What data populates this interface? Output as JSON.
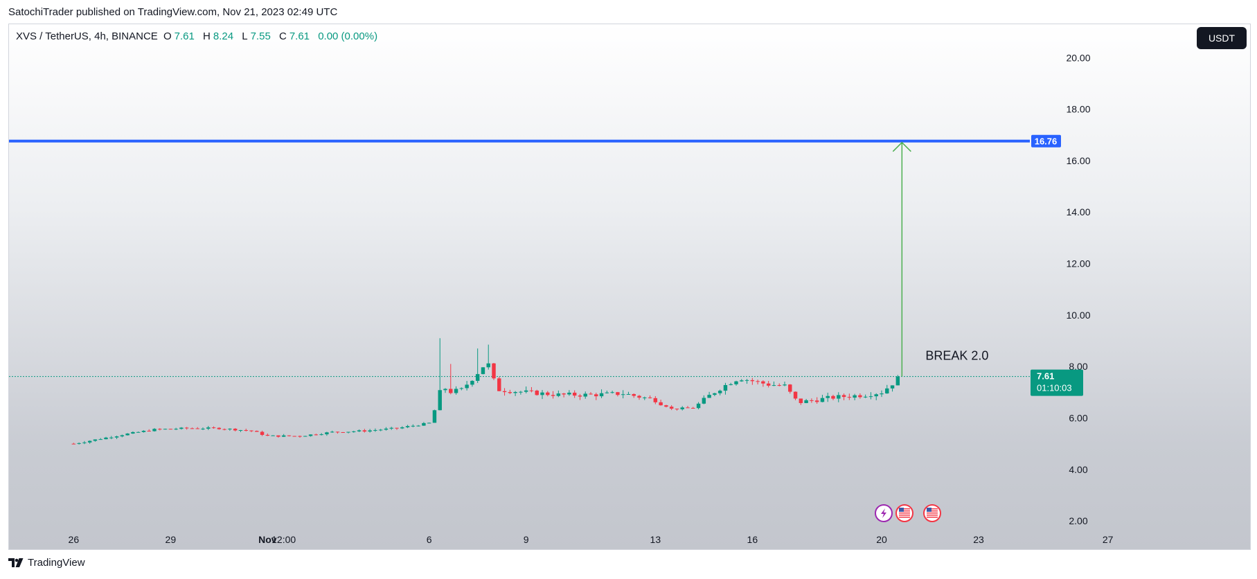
{
  "caption": "SatochiTrader published on TradingView.com, Nov 21, 2023 02:49 UTC",
  "legend": {
    "symbol": "XVS / TetherUS, 4h, BINANCE",
    "open_label": "O",
    "open": "7.61",
    "high_label": "H",
    "high": "8.24",
    "low_label": "L",
    "low": "7.55",
    "close_label": "C",
    "close": "7.61",
    "change": "0.00 (0.00%)"
  },
  "currency_button": "USDT",
  "brand": "TradingView",
  "icons": [
    "lightning-event-icon",
    "us-flag-event-icon",
    "us-flag-event-icon"
  ],
  "colors": {
    "up": "#089981",
    "down": "#f23645",
    "resistance_line": "#2962ff",
    "arrow": "#4caf50",
    "price_badge": "#089981"
  },
  "chart_data": {
    "type": "candlestick",
    "symbol": "XVS / TetherUS",
    "interval": "4h",
    "exchange": "BINANCE",
    "ylim": [
      0.9,
      21.3
    ],
    "y_ticks": [
      "2.00",
      "4.00",
      "6.00",
      "8.00",
      "10.00",
      "12.00",
      "14.00",
      "16.00",
      "18.00",
      "20.00"
    ],
    "x_ticks": [
      {
        "label": "26",
        "day": 0
      },
      {
        "label": "29",
        "day": 3
      },
      {
        "label": "Nov",
        "day": 6
      },
      {
        "label": "12:00",
        "day": 6.5
      },
      {
        "label": "6",
        "day": 11
      },
      {
        "label": "9",
        "day": 14
      },
      {
        "label": "13",
        "day": 18
      },
      {
        "label": "16",
        "day": 21
      },
      {
        "label": "20",
        "day": 25
      },
      {
        "label": "23",
        "day": 28
      },
      {
        "label": "27",
        "day": 32
      }
    ],
    "x_range": [
      -2.0,
      36.4
    ],
    "resistance": {
      "value": 16.76,
      "label": "16.76"
    },
    "last_price": {
      "value": 7.61,
      "label": "7.61",
      "countdown": "01:10:03"
    },
    "annotation": {
      "text": "BREAK 2.0",
      "arrow_from": 7.61,
      "arrow_to": 16.76
    },
    "anchors": [
      [
        0,
        5.0
      ],
      [
        1.5,
        5.35
      ],
      [
        2.5,
        5.55
      ],
      [
        3.5,
        5.6
      ],
      [
        4.5,
        5.6
      ],
      [
        5.5,
        5.5
      ],
      [
        6.0,
        5.3
      ],
      [
        7.0,
        5.3
      ],
      [
        8.0,
        5.45
      ],
      [
        9.0,
        5.5
      ],
      [
        10.0,
        5.6
      ],
      [
        11.0,
        5.8
      ],
      [
        11.2,
        6.4
      ],
      [
        11.4,
        7.3
      ],
      [
        11.6,
        7.0
      ],
      [
        12.0,
        7.1
      ],
      [
        12.4,
        7.6
      ],
      [
        12.8,
        8.2
      ],
      [
        13.1,
        7.1
      ],
      [
        14.0,
        7.0
      ],
      [
        15.0,
        6.9
      ],
      [
        16.0,
        6.9
      ],
      [
        17.0,
        6.95
      ],
      [
        18.0,
        6.7
      ],
      [
        18.5,
        6.35
      ],
      [
        19.2,
        6.4
      ],
      [
        19.7,
        6.9
      ],
      [
        20.2,
        7.3
      ],
      [
        20.6,
        7.55
      ],
      [
        21.5,
        7.3
      ],
      [
        22.0,
        7.25
      ],
      [
        22.4,
        6.6
      ],
      [
        23.5,
        6.8
      ],
      [
        24.5,
        6.9
      ],
      [
        25.0,
        7.0
      ],
      [
        25.3,
        7.3
      ],
      [
        25.6,
        7.6
      ]
    ],
    "spikes": [
      {
        "day": 11.3,
        "high": 9.1
      },
      {
        "day": 12.8,
        "high": 8.85
      },
      {
        "day": 12.55,
        "high": 8.7
      },
      {
        "day": 11.6,
        "high": 8.1
      }
    ]
  }
}
